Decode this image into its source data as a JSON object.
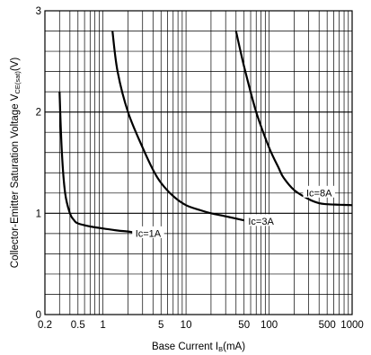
{
  "chart_data": {
    "type": "line",
    "title": "",
    "xlabel": {
      "text": "Base Current I",
      "sub": "B",
      "unit": "(mA)"
    },
    "ylabel": {
      "text": "Collector-Emitter Saturation Voltage V",
      "sub": "CE(sat)",
      "unit": "(V)"
    },
    "x_scale": "log",
    "xlim": [
      0.2,
      1000
    ],
    "ylim": [
      0,
      3
    ],
    "grid": true,
    "x_tick_labels": [
      {
        "value": 0.2,
        "label": "0.2"
      },
      {
        "value": 0.5,
        "label": "0.5"
      },
      {
        "value": 1,
        "label": "1"
      },
      {
        "value": 5,
        "label": "5"
      },
      {
        "value": 10,
        "label": "10"
      },
      {
        "value": 50,
        "label": "50"
      },
      {
        "value": 100,
        "label": "100"
      },
      {
        "value": 500,
        "label": "500"
      },
      {
        "value": 1000,
        "label": "1000"
      }
    ],
    "y_tick_labels": [
      {
        "value": 0,
        "label": "0"
      },
      {
        "value": 1,
        "label": "1"
      },
      {
        "value": 2,
        "label": "2"
      },
      {
        "value": 3,
        "label": "3"
      }
    ],
    "series": [
      {
        "name": "Ic=1A",
        "label_at": {
          "x": 3.5,
          "y": 0.8
        },
        "points": [
          [
            0.3,
            2.2
          ],
          [
            0.32,
            1.6
          ],
          [
            0.35,
            1.2
          ],
          [
            0.4,
            1.0
          ],
          [
            0.45,
            0.93
          ],
          [
            0.5,
            0.9
          ],
          [
            0.7,
            0.87
          ],
          [
            1,
            0.85
          ],
          [
            1.5,
            0.83
          ],
          [
            2,
            0.82
          ],
          [
            3,
            0.8
          ],
          [
            4,
            0.79
          ]
        ]
      },
      {
        "name": "Ic=3A",
        "label_at": {
          "x": 80,
          "y": 0.92
        },
        "points": [
          [
            1.3,
            2.8
          ],
          [
            1.5,
            2.4
          ],
          [
            2,
            2.0
          ],
          [
            3,
            1.65
          ],
          [
            4,
            1.43
          ],
          [
            5,
            1.3
          ],
          [
            7,
            1.17
          ],
          [
            10,
            1.08
          ],
          [
            15,
            1.03
          ],
          [
            20,
            1.0
          ],
          [
            30,
            0.97
          ],
          [
            50,
            0.93
          ]
        ]
      },
      {
        "name": "Ic=8A",
        "label_at": {
          "x": 400,
          "y": 1.2
        },
        "points": [
          [
            40,
            2.8
          ],
          [
            50,
            2.45
          ],
          [
            70,
            2.0
          ],
          [
            100,
            1.65
          ],
          [
            130,
            1.45
          ],
          [
            150,
            1.35
          ],
          [
            200,
            1.23
          ],
          [
            300,
            1.14
          ],
          [
            400,
            1.1
          ],
          [
            500,
            1.09
          ],
          [
            700,
            1.085
          ],
          [
            1000,
            1.08
          ]
        ]
      }
    ]
  }
}
